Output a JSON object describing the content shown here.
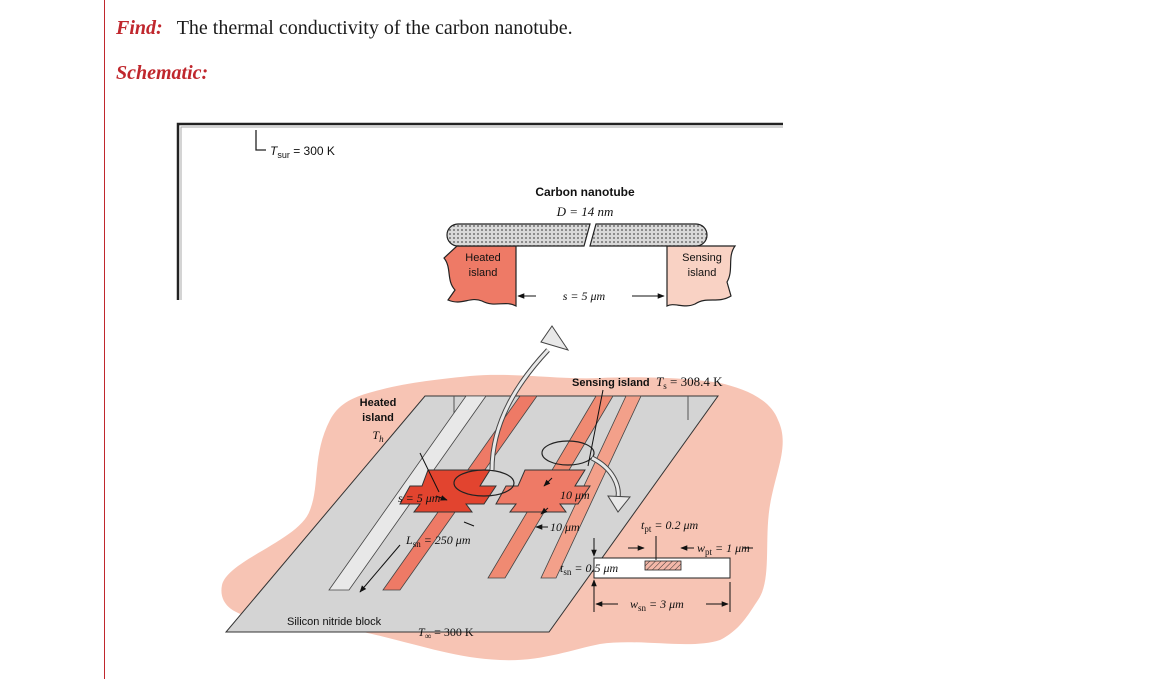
{
  "find": {
    "label": "Find:",
    "text": "The thermal conductivity of the carbon nanotube."
  },
  "schematic": {
    "label": "Schematic:"
  },
  "colors": {
    "accent": "#c0272d",
    "blob": "#f7c4b4",
    "heated": "#ee7a66",
    "sensing": "#f9d2c4",
    "block": "#d4d4d4"
  },
  "labels": {
    "t_sur_sym": "T",
    "t_sur_sub": "sur",
    "t_sur_val": " = 300 K",
    "cnt_title": "Carbon nanotube",
    "cnt_d": "D = 14 nm",
    "heated1": "Heated",
    "heated2": "island",
    "sensing1": "Sensing",
    "sensing2": "island",
    "gap": "s = 5 μm",
    "sens_label": "Sensing island",
    "ts_sym": "T",
    "ts_sub": "s",
    "ts_val": " = 308.4 K",
    "hi_1": "Heated",
    "hi_2": "island",
    "hi_sym": "T",
    "hi_sub": "h",
    "s5": "s = 5 μm",
    "d10a": "10 μm",
    "d10b": "10 μm",
    "lsn_sym": "L",
    "lsn_sub": "sn",
    "lsn_val": " = 250 μm",
    "tpt_sym": "t",
    "tpt_sub": "pt",
    "tpt_val": " = 0.2 μm",
    "wpt_sym": "w",
    "wpt_sub": "pt",
    "wpt_val": " = 1 μm",
    "tsn_sym": "t",
    "tsn_sub": "sn",
    "tsn_val": " = 0.5 μm",
    "wsn_sym": "w",
    "wsn_sub": "sn",
    "wsn_val": " = 3 μm",
    "block": "Silicon nitride block",
    "tinf_sym": "T",
    "tinf_sub": "∞",
    "tinf_val": " = 300 K"
  }
}
